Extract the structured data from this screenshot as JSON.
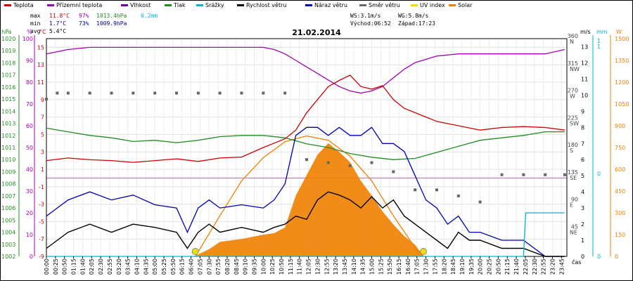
{
  "chart_data": {
    "type": "line",
    "date": "21.02.2014",
    "legend": [
      {
        "name": "Teplota",
        "color": "#cc0000"
      },
      {
        "name": "Přízemní teplota",
        "color": "#a400b5"
      },
      {
        "name": "Vlhkost",
        "color": "#6e00aa"
      },
      {
        "name": "Tlak",
        "color": "#228b22"
      },
      {
        "name": "Srážky",
        "color": "#00b4d8"
      },
      {
        "name": "Rychlost větru",
        "color": "#000000"
      },
      {
        "name": "Náraz větru",
        "color": "#0000b4"
      },
      {
        "name": "Směr větru",
        "color": "#666666"
      },
      {
        "name": "UV index",
        "color": "#e8e000"
      },
      {
        "name": "Solar",
        "color": "#f08000"
      }
    ],
    "stats": {
      "max": {
        "label": "max",
        "temp": "11.8°C",
        "hum": "97%",
        "press": "1013.4hPa",
        "rain": "0.2mm"
      },
      "min": {
        "label": "min",
        "temp": "1.7°C",
        "hum": "73%",
        "press": "1009.9hPa"
      },
      "avg": {
        "label": "avg",
        "temp": "5.4°C"
      }
    },
    "info": {
      "ws": "WS:3.1m/s",
      "wg": "WG:5.8m/s",
      "sunrise": "Východ:06:52",
      "sunset": "Západ:17:23"
    },
    "axes": {
      "hpa": {
        "unit": "hPa",
        "ticks": [
          "1020",
          "1019",
          "1018",
          "1017",
          "1016",
          "1015",
          "1014",
          "1013",
          "1012",
          "1011",
          "1010",
          "1009",
          "1008",
          "1007",
          "1006",
          "1005",
          "1004",
          "1003",
          "1002"
        ],
        "range": [
          1002,
          1020
        ]
      },
      "pct": {
        "unit": "%",
        "ticks": [
          "100",
          "90",
          "80",
          "70",
          "60",
          "50",
          "40",
          "30",
          "20",
          "10",
          "0"
        ],
        "range": [
          0,
          100
        ]
      },
      "temp": {
        "unit": "°C",
        "ticks": [
          "15",
          "13",
          "11",
          "9",
          "7",
          "5",
          "3",
          "1",
          "-1",
          "-3",
          "-5",
          "-7",
          "-9"
        ],
        "range": [
          -9,
          16
        ]
      },
      "dir": {
        "ticks": [
          "360\nN",
          "315\nNW",
          "270\nW",
          "225\nSW",
          "180\nS",
          "135\nSE",
          "90\nE",
          "45\nNE"
        ],
        "range": [
          0,
          360
        ]
      },
      "ms": {
        "unit": "m/s",
        "ticks": [
          "13",
          "12",
          "11",
          "10",
          "9",
          "8",
          "7",
          "6",
          "5",
          "4",
          "3",
          "2",
          "1",
          "0"
        ],
        "range": [
          0,
          13.5
        ]
      },
      "mm": {
        "unit": "mm",
        "ticks": [
          "1",
          "1",
          "0",
          "0"
        ],
        "range": [
          0,
          1
        ]
      },
      "w": {
        "unit": "W",
        "ticks": [
          "1500",
          "1350",
          "1200",
          "1050",
          "900",
          "750",
          "600",
          "450",
          "300",
          "150",
          "0"
        ],
        "range": [
          0,
          1500
        ]
      },
      "time": {
        "label": "čas",
        "ticks": [
          "00:00",
          "00:25",
          "00:50",
          "01:15",
          "01:40",
          "02:05",
          "02:30",
          "02:55",
          "03:20",
          "03:45",
          "04:10",
          "04:35",
          "05:00",
          "05:25",
          "05:50",
          "06:15",
          "06:40",
          "07:05",
          "07:30",
          "07:55",
          "08:20",
          "08:45",
          "09:10",
          "09:35",
          "10:00",
          "10:25",
          "10:50",
          "11:15",
          "11:40",
          "12:05",
          "12:30",
          "12:55",
          "13:20",
          "13:45",
          "14:10",
          "14:35",
          "15:00",
          "15:25",
          "15:50",
          "16:15",
          "16:40",
          "17:05",
          "17:30",
          "17:55",
          "18:20",
          "18:45",
          "19:10",
          "19:35",
          "20:00",
          "20:25",
          "20:50",
          "21:15",
          "21:40",
          "22:05",
          "22:30",
          "22:55",
          "23:20",
          "23:45"
        ]
      }
    },
    "series": {
      "temperature": {
        "x": [
          0,
          1,
          2,
          3,
          4,
          5,
          6,
          7,
          8,
          9,
          10,
          11,
          11.5,
          12,
          12.5,
          13,
          13.5,
          14,
          14.5,
          15,
          15.5,
          16,
          16.5,
          17,
          17.5,
          18,
          19,
          20,
          21,
          22,
          23,
          23.9
        ],
        "y": [
          2.0,
          2.3,
          2.1,
          2.0,
          1.8,
          2.0,
          2.2,
          1.9,
          2.3,
          2.4,
          3.5,
          4.5,
          5.5,
          7.5,
          9.0,
          10.5,
          11.2,
          11.8,
          10.5,
          10.2,
          10.6,
          9.0,
          8.0,
          7.5,
          7.0,
          6.5,
          6.0,
          5.5,
          5.8,
          5.9,
          5.8,
          5.5
        ]
      },
      "ground_temperature": {
        "x": [
          0,
          1,
          2,
          3,
          4,
          5,
          6,
          7,
          8,
          9,
          10,
          10.5,
          11,
          11.5,
          12,
          12.5,
          13,
          13.5,
          14,
          14.5,
          15,
          15.5,
          16,
          16.5,
          17,
          18,
          19,
          20,
          21,
          22,
          23,
          23.9
        ],
        "y": [
          93,
          95,
          96,
          96,
          96,
          96,
          96,
          96,
          96,
          96,
          96,
          95,
          93,
          90,
          87,
          84,
          81,
          78,
          76,
          75,
          76,
          78,
          82,
          86,
          89,
          92,
          93,
          93,
          93,
          93,
          93,
          95
        ]
      },
      "pressure": {
        "x": [
          0,
          1,
          2,
          3,
          4,
          5,
          6,
          7,
          8,
          9,
          10,
          11,
          12,
          13,
          14,
          15,
          16,
          17,
          18,
          19,
          20,
          21,
          22,
          23,
          23.9
        ],
        "y": [
          1012.6,
          1012.3,
          1012.0,
          1011.8,
          1011.5,
          1011.6,
          1011.4,
          1011.6,
          1011.9,
          1012.0,
          1012.0,
          1011.8,
          1011.3,
          1011.0,
          1010.5,
          1010.2,
          1010.0,
          1010.1,
          1010.6,
          1011.1,
          1011.6,
          1011.8,
          1012.0,
          1012.3,
          1012.3
        ]
      },
      "wind_speed": {
        "x": [
          0,
          1,
          2,
          3,
          4,
          5,
          6,
          6.5,
          7,
          7.5,
          8,
          9,
          10,
          10.5,
          11,
          11.5,
          12,
          12.5,
          13,
          13.5,
          14,
          14.5,
          15,
          15.5,
          16,
          16.5,
          17,
          17.5,
          18,
          18.5,
          19,
          19.5,
          20,
          21,
          22,
          23,
          23.9
        ],
        "y": [
          0.5,
          1.5,
          2.0,
          1.5,
          2.0,
          1.8,
          1.5,
          0.5,
          1.5,
          2.0,
          1.5,
          1.8,
          1.5,
          1.8,
          2.0,
          2.5,
          2.3,
          3.5,
          4.0,
          3.8,
          3.5,
          3.0,
          3.7,
          3.0,
          3.5,
          2.5,
          2.0,
          1.5,
          1.0,
          0.5,
          1.5,
          1.0,
          1.0,
          0.5,
          0.5,
          0,
          0
        ]
      },
      "wind_gust": {
        "x": [
          0,
          1,
          2,
          3,
          4,
          5,
          6,
          6.5,
          7,
          7.5,
          8,
          9,
          10,
          10.5,
          11,
          11.5,
          12,
          12.5,
          13,
          13.5,
          14,
          14.5,
          15,
          15.5,
          16,
          16.5,
          17,
          17.5,
          18,
          18.5,
          19,
          19.5,
          20,
          21,
          22,
          23,
          23.9
        ],
        "y": [
          2.5,
          3.5,
          4.0,
          3.5,
          3.8,
          3.2,
          3.0,
          1.5,
          3.0,
          3.5,
          3.0,
          3.2,
          3.0,
          3.5,
          4.5,
          7.5,
          8.0,
          8.0,
          7.5,
          8.0,
          7.5,
          7.5,
          8.0,
          7.0,
          7.0,
          6.5,
          5.0,
          3.5,
          3.0,
          2.0,
          2.5,
          1.5,
          1.5,
          1.0,
          1.0,
          0,
          0
        ]
      },
      "wind_direction": {
        "x": [
          0,
          0.5,
          1,
          2,
          3,
          4,
          5,
          6,
          7,
          8,
          9,
          10,
          11,
          12,
          13,
          14,
          15,
          16,
          17,
          18,
          19,
          20,
          21,
          22,
          23,
          23.9
        ],
        "y": [
          260,
          270,
          270,
          270,
          270,
          270,
          270,
          270,
          270,
          270,
          270,
          270,
          270,
          160,
          155,
          150,
          155,
          140,
          110,
          110,
          100,
          90,
          135,
          135,
          135,
          135
        ]
      },
      "solar": {
        "x": [
          0,
          6.8,
          7.5,
          8,
          9,
          10,
          10.5,
          11,
          11.5,
          12,
          12.5,
          13,
          13.5,
          14,
          14.5,
          15,
          15.5,
          16,
          16.5,
          17,
          17.4,
          24
        ],
        "y": [
          0,
          0,
          50,
          100,
          120,
          150,
          160,
          200,
          420,
          560,
          700,
          780,
          720,
          650,
          520,
          420,
          310,
          220,
          140,
          80,
          0,
          0
        ]
      },
      "solar_theoretical": {
        "x": [
          6.87,
          8,
          9,
          10,
          11,
          12,
          13,
          14,
          15,
          16,
          17,
          17.38
        ],
        "y": [
          0,
          280,
          520,
          680,
          790,
          830,
          800,
          690,
          520,
          280,
          60,
          0
        ]
      },
      "rain": {
        "x": [
          0,
          22.0,
          22.1,
          23.9
        ],
        "y": [
          0,
          0,
          0.2,
          0.2
        ]
      }
    }
  }
}
